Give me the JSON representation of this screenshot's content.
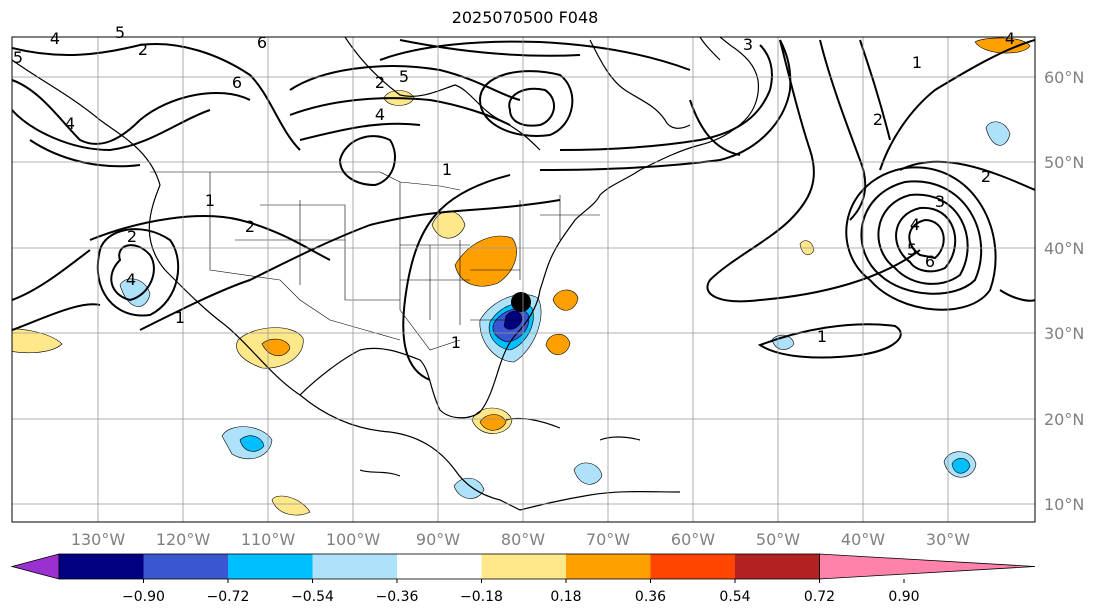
{
  "title": "2025070500 F048",
  "lon_labels": [
    "130°W",
    "120°W",
    "110°W",
    "100°W",
    "90°W",
    "80°W",
    "70°W",
    "60°W",
    "50°W",
    "40°W",
    "30°W"
  ],
  "lat_labels": [
    "60°N",
    "50°N",
    "40°N",
    "30°N",
    "20°N",
    "10°N"
  ],
  "contour_labels": [
    "4",
    "5",
    "2",
    "6",
    "4",
    "5",
    "6",
    "2",
    "5",
    "4",
    "1",
    "2",
    "2",
    "4",
    "1",
    "1",
    "1",
    "2",
    "3",
    "4",
    "5",
    "6",
    "3",
    "1",
    "2",
    "1",
    "4"
  ],
  "colorbar": {
    "tick_labels": [
      "−0.90",
      "−0.72",
      "−0.54",
      "−0.36",
      "−0.18",
      "0.18",
      "0.36",
      "0.54",
      "0.72",
      "0.90"
    ],
    "colors": [
      "#9b30d0",
      "#000080",
      "#3a56d0",
      "#00bfff",
      "#aee2fa",
      "#ffffff",
      "#ffe88a",
      "#ffa000",
      "#ff4500",
      "#b22222",
      "#ff82ab"
    ]
  }
}
